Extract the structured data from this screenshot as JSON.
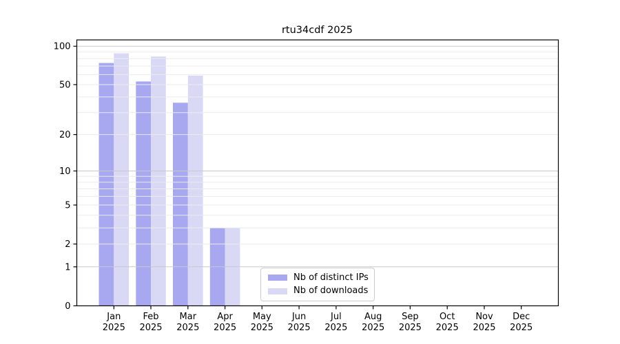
{
  "chart_data": {
    "type": "bar",
    "title": "rtu34cdf 2025",
    "categories": [
      "Jan",
      "Feb",
      "Mar",
      "Apr",
      "May",
      "Jun",
      "Jul",
      "Aug",
      "Sep",
      "Oct",
      "Nov",
      "Dec"
    ],
    "category_sub_label": "2025",
    "series": [
      {
        "name": "Nb of distinct IPs",
        "color": "#a8a8f0",
        "values": [
          74,
          53,
          36,
          3,
          0,
          0,
          0,
          0,
          0,
          0,
          0,
          0
        ]
      },
      {
        "name": "Nb of downloads",
        "color": "#d9d9f6",
        "values": [
          88,
          83,
          59,
          3,
          0,
          0,
          0,
          0,
          0,
          0,
          0,
          0
        ]
      }
    ],
    "yscale": "log1p",
    "ylim": [
      0,
      112
    ],
    "yticks": [
      0,
      1,
      2,
      5,
      10,
      20,
      50,
      100
    ],
    "grid": {
      "minor_values": [
        2,
        3,
        4,
        5,
        6,
        7,
        8,
        9,
        20,
        30,
        40,
        50,
        60,
        70,
        80,
        90
      ],
      "major_values": [
        1,
        10,
        100
      ],
      "minor_color": "#ebebeb",
      "major_color": "#c8c8c8"
    },
    "legend": {
      "position": "lower center"
    },
    "axis_color": "#000000",
    "background": "#ffffff"
  }
}
